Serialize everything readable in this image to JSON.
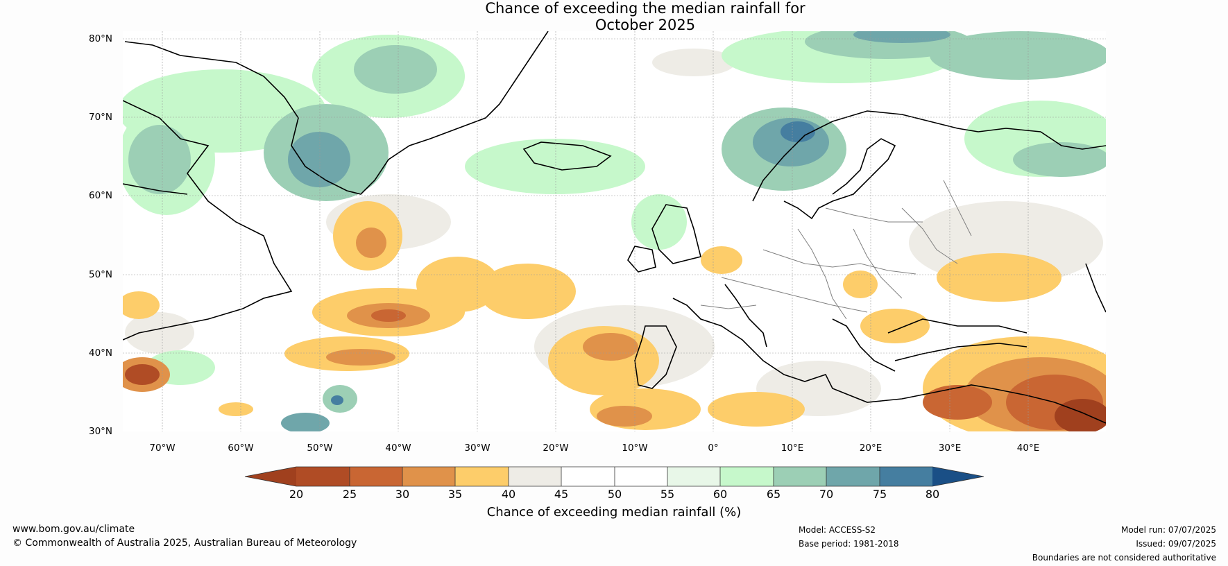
{
  "title": {
    "line1": "Chance of exceeding the median rainfall for",
    "line2": "October 2025"
  },
  "lat_labels": [
    "80°N",
    "70°N",
    "60°N",
    "50°N",
    "40°N",
    "30°N"
  ],
  "lon_labels": [
    "70°W",
    "60°W",
    "50°W",
    "40°W",
    "30°W",
    "20°W",
    "10°W",
    "0°",
    "10°E",
    "20°E",
    "30°E",
    "40°E"
  ],
  "colorbar": {
    "ticks": [
      "20",
      "25",
      "30",
      "35",
      "40",
      "45",
      "50",
      "55",
      "60",
      "65",
      "70",
      "75",
      "80"
    ],
    "label": "Chance of exceeding median rainfall (%)",
    "colors": [
      "#a0401e",
      "#b04c25",
      "#c96633",
      "#e0924a",
      "#fdcd6a",
      "#eeece6",
      "#ffffff",
      "#ffffff",
      "#e8f7e8",
      "#c6f8cb",
      "#9ccfb5",
      "#6fa6aa",
      "#457ea0",
      "#1a4f86"
    ]
  },
  "footer": {
    "website": "www.bom.gov.au/climate",
    "copyright": "© Commonwealth of Australia 2025, Australian Bureau of Meteorology",
    "model": "Model: ACCESS-S2",
    "base_period": "Base period: 1981-2018",
    "model_run": "Model run: 07/07/2025",
    "issued": "Issued: 09/07/2025",
    "disclaimer": "Boundaries are not considered authoritative"
  }
}
